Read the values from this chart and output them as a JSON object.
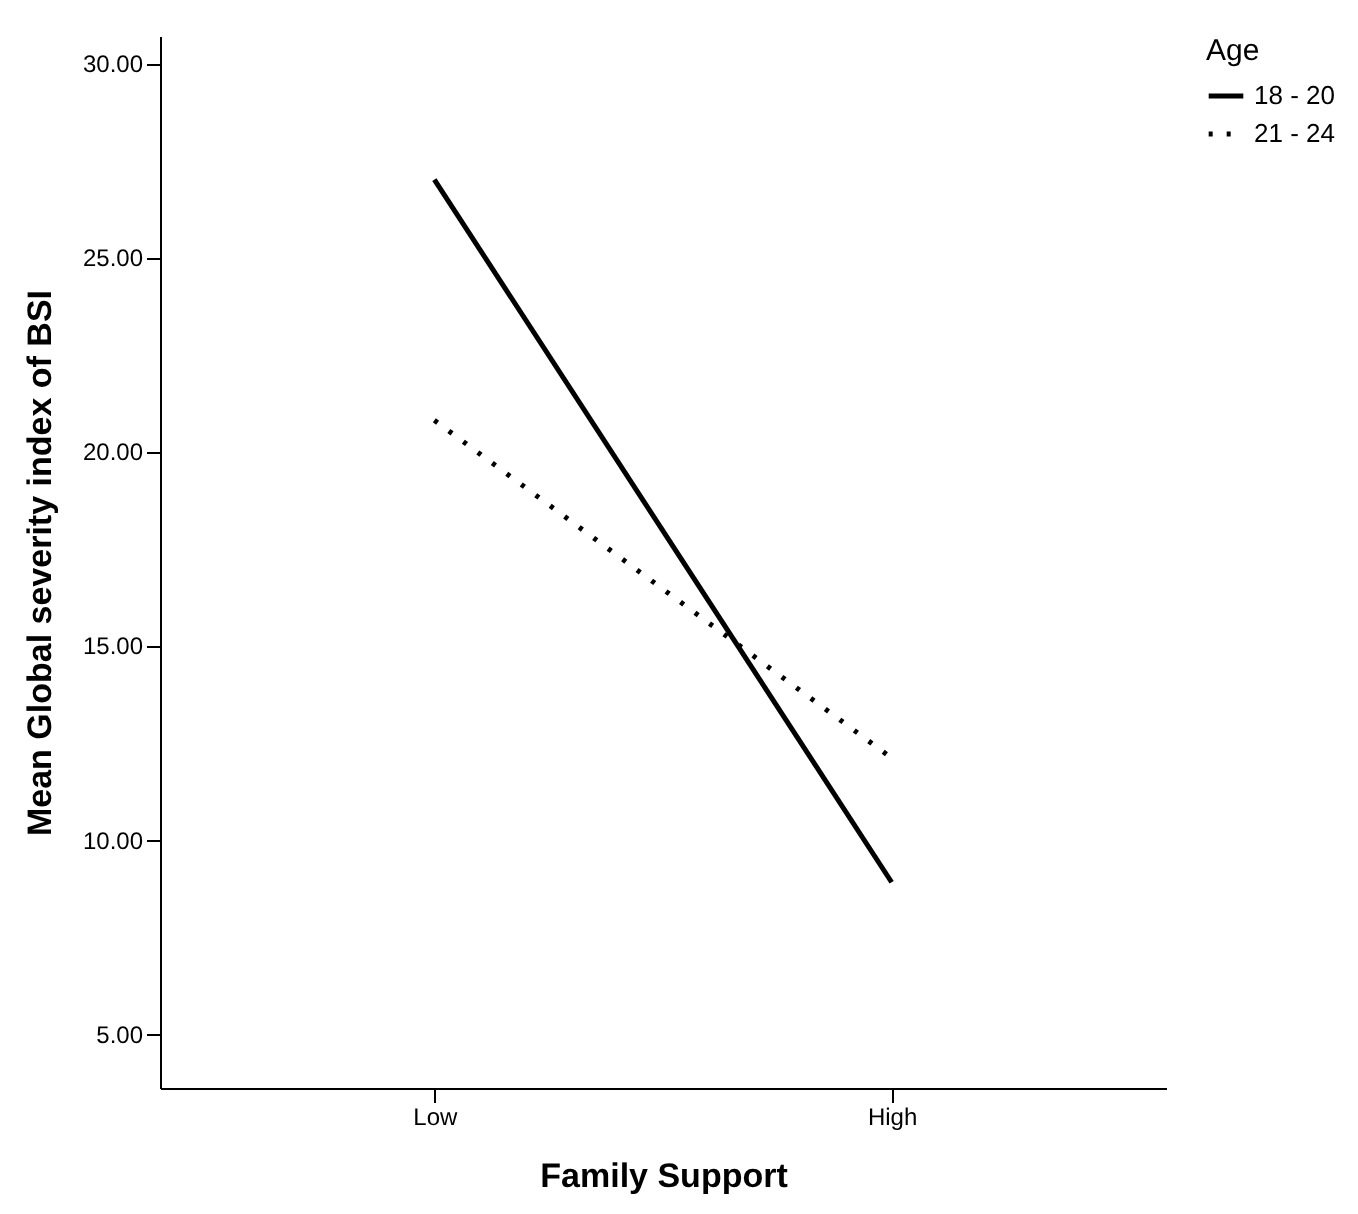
{
  "chart_data": {
    "type": "line",
    "xlabel": "Family Support",
    "ylabel": "Mean Global severity index of BSI",
    "legend_title": "Age",
    "legend": "top right",
    "categories": [
      "Low",
      "High"
    ],
    "series": [
      {
        "name": "18 - 20",
        "color": "#000000",
        "line_style": "solid",
        "values": [
          27.0,
          8.9
        ]
      },
      {
        "name": "21 - 24",
        "color": "#000000",
        "line_style": "dotted",
        "values": [
          20.8,
          12.1
        ]
      }
    ],
    "ylim": [
      3.6,
      30.7
    ],
    "yticks": [
      {
        "value": 5,
        "label": "5.00"
      },
      {
        "value": 10,
        "label": "10.00"
      },
      {
        "value": 15,
        "label": "15.00"
      },
      {
        "value": 20,
        "label": "20.00"
      },
      {
        "value": 25,
        "label": "25.00"
      },
      {
        "value": 30,
        "label": "30.00"
      }
    ],
    "grid": false,
    "marker": "none"
  }
}
